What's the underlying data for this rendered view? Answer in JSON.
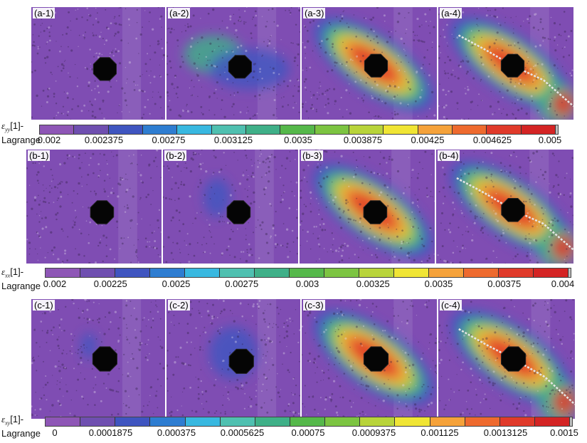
{
  "rows": [
    {
      "id": "a",
      "panels": [
        "(a-1)",
        "(a-2)",
        "(a-3)",
        "(a-4)"
      ],
      "colorbar": {
        "symbol": "ε",
        "subscript": "yy",
        "label_rest": "[1]-",
        "label_line2": "Lagrange",
        "ticks": [
          "0.002",
          "0.002375",
          "0.00275",
          "0.003125",
          "0.0035",
          "0.003875",
          "0.00425",
          "0.004625",
          "0.005"
        ]
      }
    },
    {
      "id": "b",
      "panels": [
        "(b-1)",
        "(b-2)",
        "(b-3)",
        "(b-4)"
      ],
      "colorbar": {
        "symbol": "ε",
        "subscript": "xx",
        "label_rest": "[1]-",
        "label_line2": "Lagrange",
        "ticks": [
          "0.002",
          "0.00225",
          "0.0025",
          "0.00275",
          "0.003",
          "0.00325",
          "0.0035",
          "0.00375",
          "0.004"
        ]
      }
    },
    {
      "id": "c",
      "panels": [
        "(c-1)",
        "(c-2)",
        "(c-3)",
        "(c-4)"
      ],
      "colorbar": {
        "symbol": "ε",
        "subscript": "xy",
        "label_rest": "[1]-",
        "label_line2": "Lagrange",
        "ticks": [
          "0",
          "0.0001875",
          "0.000375",
          "0.0005625",
          "0.00075",
          "0.0009375",
          "0.001125",
          "0.0013125",
          "0.0015"
        ]
      }
    }
  ],
  "colormap": [
    "#8e56b6",
    "#6f4fb0",
    "#3f55c0",
    "#2e7dd1",
    "#38b8e0",
    "#4fc0b0",
    "#3fb088",
    "#55b84a",
    "#7cc441",
    "#b8d43a",
    "#f0e534",
    "#f5a23a",
    "#ee6a2e",
    "#e03a2a",
    "#d42424"
  ],
  "background_color": "#7d4bb0"
}
